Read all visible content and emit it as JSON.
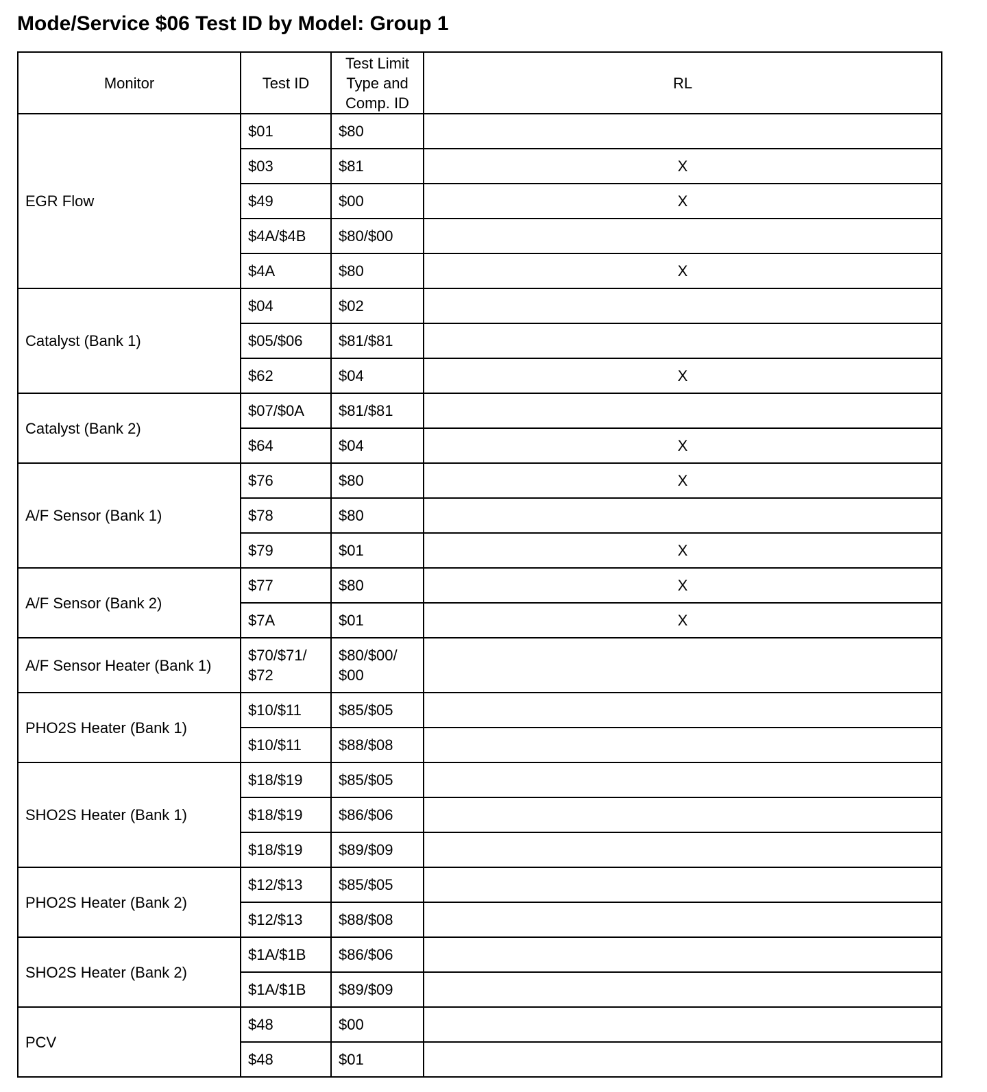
{
  "title": "Mode/Service $06 Test ID by Model: Group 1",
  "columns": [
    "Monitor",
    "Test ID",
    "Test Limit Type and Comp. ID",
    "RL"
  ],
  "groups": [
    {
      "monitor": "EGR Flow",
      "rows": [
        [
          "$01",
          "$80",
          ""
        ],
        [
          "$03",
          "$81",
          "X"
        ],
        [
          "$49",
          "$00",
          "X"
        ],
        [
          "$4A/$4B",
          "$80/$00",
          ""
        ],
        [
          "$4A",
          "$80",
          "X"
        ]
      ]
    },
    {
      "monitor": "Catalyst (Bank 1)",
      "rows": [
        [
          "$04",
          "$02",
          ""
        ],
        [
          "$05/$06",
          "$81/$81",
          ""
        ],
        [
          "$62",
          "$04",
          "X"
        ]
      ]
    },
    {
      "monitor": "Catalyst (Bank 2)",
      "rows": [
        [
          "$07/$0A",
          "$81/$81",
          ""
        ],
        [
          "$64",
          "$04",
          "X"
        ]
      ]
    },
    {
      "monitor": "A/F Sensor (Bank 1)",
      "rows": [
        [
          "$76",
          "$80",
          "X"
        ],
        [
          "$78",
          "$80",
          ""
        ],
        [
          "$79",
          "$01",
          "X"
        ]
      ]
    },
    {
      "monitor": "A/F Sensor (Bank 2)",
      "rows": [
        [
          "$77",
          "$80",
          "X"
        ],
        [
          "$7A",
          "$01",
          "X"
        ]
      ]
    },
    {
      "monitor": "A/F Sensor Heater (Bank 1)",
      "rows": [
        [
          "$70/$71/ $72",
          "$80/$00/ $00",
          ""
        ]
      ]
    },
    {
      "monitor": "PHO2S Heater (Bank 1)",
      "rows": [
        [
          "$10/$11",
          "$85/$05",
          ""
        ],
        [
          "$10/$11",
          "$88/$08",
          ""
        ]
      ]
    },
    {
      "monitor": "SHO2S Heater (Bank 1)",
      "rows": [
        [
          "$18/$19",
          "$85/$05",
          ""
        ],
        [
          "$18/$19",
          "$86/$06",
          ""
        ],
        [
          "$18/$19",
          "$89/$09",
          ""
        ]
      ]
    },
    {
      "monitor": "PHO2S Heater (Bank 2)",
      "rows": [
        [
          "$12/$13",
          "$85/$05",
          ""
        ],
        [
          "$12/$13",
          "$88/$08",
          ""
        ]
      ]
    },
    {
      "monitor": "SHO2S Heater (Bank 2)",
      "rows": [
        [
          "$1A/$1B",
          "$86/$06",
          ""
        ],
        [
          "$1A/$1B",
          "$89/$09",
          ""
        ]
      ]
    },
    {
      "monitor": "PCV",
      "rows": [
        [
          "$48",
          "$00",
          ""
        ],
        [
          "$48",
          "$01",
          ""
        ]
      ]
    }
  ]
}
